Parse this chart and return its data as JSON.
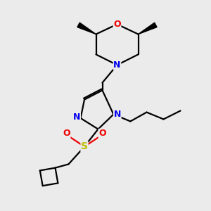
{
  "background_color": "#ebebeb",
  "atom_colors": {
    "C": "#000000",
    "N": "#0000ee",
    "O": "#ee0000",
    "S": "#bbbb00",
    "H": "#000000"
  },
  "bond_color": "#000000",
  "bond_width": 1.6,
  "font_size": 8.5,
  "xlim": [
    0,
    10
  ],
  "ylim": [
    0,
    10
  ]
}
